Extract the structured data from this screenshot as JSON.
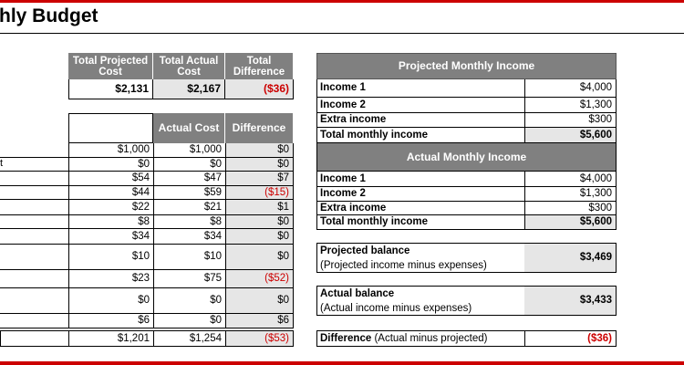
{
  "title": "thly Budget",
  "summary": {
    "headers": [
      "Total Projected Cost",
      "Total Actual Cost",
      "Total Difference"
    ],
    "values": [
      "$2,131",
      "$2,167",
      "($36)"
    ]
  },
  "expenses": {
    "headers": [
      "",
      "Actual Cost",
      "Difference"
    ],
    "row_label_fragment": "t",
    "rows": [
      {
        "projected": "$1,000",
        "actual": "$1,000",
        "difference": "$0",
        "negative": false
      },
      {
        "projected": "$0",
        "actual": "$0",
        "difference": "$0",
        "negative": false
      },
      {
        "projected": "$54",
        "actual": "$47",
        "difference": "$7",
        "negative": false
      },
      {
        "projected": "$44",
        "actual": "$59",
        "difference": "($15)",
        "negative": true
      },
      {
        "projected": "$22",
        "actual": "$21",
        "difference": "$1",
        "negative": false
      },
      {
        "projected": "$8",
        "actual": "$8",
        "difference": "$0",
        "negative": false
      },
      {
        "projected": "$34",
        "actual": "$34",
        "difference": "$0",
        "negative": false
      },
      {
        "projected": "$10",
        "actual": "$10",
        "difference": "$0",
        "negative": false
      },
      {
        "projected": "$23",
        "actual": "$75",
        "difference": "($52)",
        "negative": true
      },
      {
        "projected": "$0",
        "actual": "$0",
        "difference": "$0",
        "negative": false
      },
      {
        "projected": "$6",
        "actual": "$0",
        "difference": "$6",
        "negative": false
      }
    ],
    "total": {
      "projected": "$1,201",
      "actual": "$1,254",
      "difference": "($53)"
    }
  },
  "projected_income": {
    "header": "Projected Monthly Income",
    "rows": [
      {
        "label": "Income 1",
        "value": "$4,000"
      },
      {
        "label": "Income 2",
        "value": "$1,300"
      },
      {
        "label": "Extra income",
        "value": "$300"
      }
    ],
    "total_label": "Total monthly income",
    "total_value": "$5,600"
  },
  "actual_income": {
    "header": "Actual Monthly Income",
    "rows": [
      {
        "label": "Income 1",
        "value": "$4,000"
      },
      {
        "label": "Income 2",
        "value": "$1,300"
      },
      {
        "label": "Extra income",
        "value": "$300"
      }
    ],
    "total_label": "Total monthly income",
    "total_value": "$5,600"
  },
  "balances": {
    "projected_label": "Projected balance",
    "projected_note": "(Projected income minus expenses)",
    "projected_value": "$3,469",
    "actual_label": "Actual balance",
    "actual_note": "(Actual income minus expenses)",
    "actual_value": "$3,433",
    "difference_label": "Difference",
    "difference_note": "(Actual minus projected)",
    "difference_value": "($36)"
  },
  "colors": {
    "accent_red": "#cc0000",
    "header_gray": "#808080",
    "cell_gray": "#e6e6e6"
  }
}
